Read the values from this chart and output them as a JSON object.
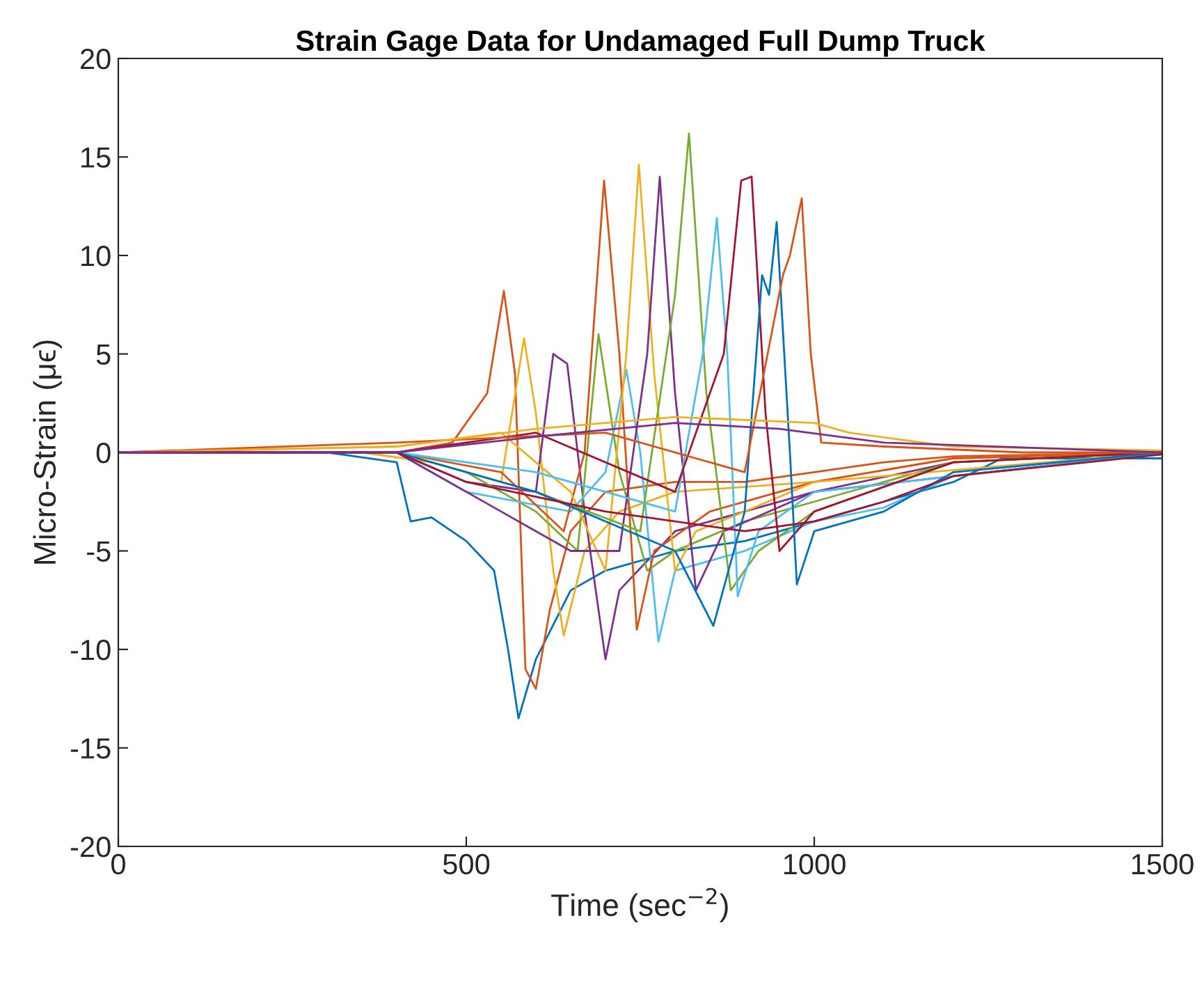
{
  "chart_data": {
    "type": "line",
    "title": "Strain Gage Data for Undamaged Full Dump Truck",
    "xlabel": "Time (sec$^{−2}$)",
    "ylabel": "Micro-Strain (μϵ)",
    "xlim": [
      0,
      1500
    ],
    "ylim": [
      -20,
      20
    ],
    "xticks": [
      0,
      500,
      1000,
      1500
    ],
    "yticks": [
      -20,
      -15,
      -10,
      -5,
      0,
      5,
      10,
      15,
      20
    ],
    "marker": "none",
    "line_style": "solid",
    "series": [
      {
        "color": "#0072bd",
        "x": [
          0,
          300,
          400,
          420,
          450,
          500,
          540,
          560,
          575,
          600,
          650,
          700,
          800,
          900,
          1000,
          1100,
          1200,
          1270,
          1500
        ],
        "values": [
          0,
          0,
          -0.5,
          -3.5,
          -3.3,
          -4.5,
          -6,
          -10,
          -13.5,
          -10.5,
          -7,
          -6,
          -5,
          -4.5,
          -3.5,
          -2.5,
          -1.5,
          -0.3,
          -0.3
        ]
      },
      {
        "color": "#d95319",
        "x": [
          0,
          300,
          400,
          480,
          530,
          554,
          570,
          585,
          600,
          620,
          650,
          700,
          800,
          900,
          1000,
          1100,
          1200,
          1500
        ],
        "values": [
          0,
          0,
          0,
          0.5,
          3,
          8.2,
          4,
          -11,
          -12,
          -8,
          -4,
          -2,
          -1.5,
          -1.5,
          -1,
          -0.5,
          -0.2,
          0
        ]
      },
      {
        "color": "#edb120",
        "x": [
          0,
          350,
          450,
          550,
          583,
          600,
          625,
          640,
          670,
          720,
          800,
          1000,
          1200,
          1500
        ],
        "values": [
          0,
          0,
          -0.5,
          -1.5,
          5.8,
          2,
          -6,
          -9.3,
          -5,
          -3,
          -2,
          -1.5,
          -0.3,
          0
        ]
      },
      {
        "color": "#7e2f8e",
        "x": [
          0,
          400,
          500,
          600,
          625,
          645,
          670,
          700,
          720,
          800,
          900,
          1000,
          1200,
          1500
        ],
        "values": [
          0,
          0,
          -1.5,
          -2,
          5,
          4.5,
          -3,
          -10.5,
          -7,
          -4,
          -3,
          -2,
          -0.5,
          0
        ]
      },
      {
        "color": "#77ac30",
        "x": [
          0,
          400,
          500,
          600,
          660,
          690,
          720,
          760,
          800,
          900,
          1000,
          1200,
          1500
        ],
        "values": [
          0,
          0,
          -1,
          -3,
          -5,
          6,
          -1,
          -6,
          -5,
          -3.5,
          -2.5,
          -0.5,
          0
        ]
      },
      {
        "color": "#4dbeee",
        "x": [
          0,
          400,
          500,
          650,
          700,
          730,
          750,
          776,
          800,
          900,
          1000,
          1100,
          1200,
          1500
        ],
        "values": [
          0,
          0,
          -2,
          -3,
          -1,
          4.2,
          0,
          -9.6,
          -6,
          -5,
          -3.5,
          -2.8,
          -1.2,
          0
        ]
      },
      {
        "color": "#d95319",
        "x": [
          0,
          400,
          550,
          640,
          670,
          698,
          720,
          745,
          770,
          850,
          1000,
          1200,
          1500
        ],
        "values": [
          0,
          0,
          -1,
          -4,
          0,
          13.8,
          5,
          -9,
          -5,
          -3,
          -1.5,
          -0.3,
          0
        ]
      },
      {
        "color": "#edb120",
        "x": [
          0,
          400,
          550,
          650,
          700,
          730,
          748,
          770,
          800,
          830,
          900,
          1000,
          1500
        ],
        "values": [
          0,
          0.3,
          1,
          -2,
          -6,
          5,
          14.6,
          4,
          -6,
          -4,
          -3,
          -1.5,
          0
        ]
      },
      {
        "color": "#7e2f8e",
        "x": [
          0,
          400,
          550,
          650,
          720,
          760,
          778,
          800,
          830,
          870,
          1000,
          1500
        ],
        "values": [
          0,
          0,
          -3,
          -5,
          -5,
          5,
          14,
          3,
          -7,
          -4,
          -2,
          0
        ]
      },
      {
        "color": "#77ac30",
        "x": [
          0,
          400,
          600,
          750,
          800,
          820,
          845,
          880,
          920,
          1000,
          1200,
          1500
        ],
        "values": [
          0,
          0,
          -2,
          -4,
          8,
          16.2,
          3,
          -7,
          -5,
          -3,
          -0.5,
          0
        ]
      },
      {
        "color": "#4dbeee",
        "x": [
          0,
          400,
          600,
          800,
          840,
          860,
          875,
          890,
          920,
          1000,
          1500
        ],
        "values": [
          0,
          0,
          -1,
          -3,
          5,
          11.9,
          5,
          -7.3,
          -4,
          -2,
          0
        ]
      },
      {
        "color": "#a2142f",
        "x": [
          0,
          400,
          600,
          800,
          870,
          895,
          910,
          930,
          950,
          1000,
          1200,
          1500
        ],
        "values": [
          0,
          0,
          1,
          -2,
          5,
          13.8,
          14,
          2,
          -5,
          -3,
          -0.5,
          0
        ]
      },
      {
        "color": "#0072bd",
        "x": [
          0,
          400,
          600,
          800,
          855,
          900,
          925,
          935,
          946,
          965,
          975,
          1000,
          1100,
          1200,
          1500
        ],
        "values": [
          0,
          0,
          -2,
          -5,
          -8.8,
          -3,
          9,
          8,
          11.7,
          0,
          -6.7,
          -4,
          -3,
          -1,
          0
        ]
      },
      {
        "color": "#d95319",
        "x": [
          0,
          400,
          700,
          900,
          955,
          965,
          982,
          995,
          1010,
          1100,
          1300,
          1500
        ],
        "values": [
          0,
          0.5,
          1,
          -1,
          9,
          10,
          12.9,
          5,
          0.5,
          0.3,
          0,
          0
        ]
      },
      {
        "color": "#edb120",
        "x": [
          0,
          400,
          600,
          800,
          1000,
          1050,
          1200,
          1500
        ],
        "values": [
          0,
          0.3,
          1.2,
          1.8,
          1.5,
          1,
          0.3,
          0.1
        ]
      },
      {
        "color": "#a2142f",
        "x": [
          0,
          400,
          500,
          700,
          900,
          1000,
          1100,
          1200,
          1500
        ],
        "values": [
          0,
          0,
          -1.5,
          -3,
          -4,
          -3.5,
          -2.5,
          -1.2,
          -0.1
        ]
      },
      {
        "color": "#7e2f8e",
        "x": [
          0,
          400,
          600,
          800,
          950,
          1100,
          1500
        ],
        "values": [
          0,
          0,
          0.8,
          1.5,
          1.2,
          0.5,
          0
        ]
      }
    ]
  }
}
